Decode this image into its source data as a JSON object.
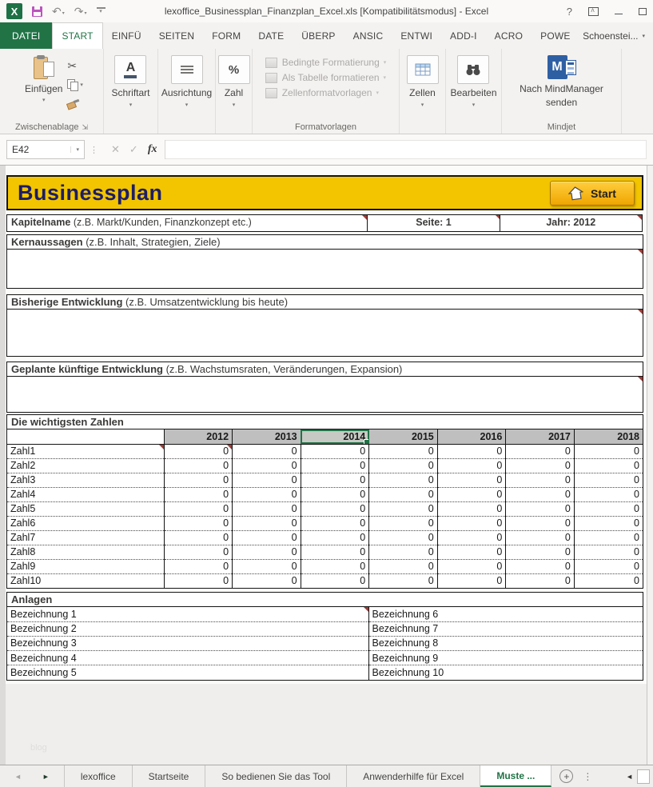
{
  "title_bar": {
    "title": "lexoffice_Businessplan_Finanzplan_Excel.xls  [Kompatibilitätsmodus] - Excel"
  },
  "icons": {
    "excel": "X",
    "undo": "↶",
    "redo": "↷",
    "dropdown": "▾",
    "scissors": "✂",
    "dialog_launcher": "⇲",
    "font": "A",
    "percent": "%",
    "mindmanager": "M",
    "help": "?",
    "cancel": "✕",
    "enter": "✓",
    "function": "fx",
    "more": "⋮",
    "sheet_nav_left": "◄",
    "sheet_nav_right": "►",
    "tab_scroll_left": "◄",
    "add_sheet": "+"
  },
  "ribbon": {
    "tabs": [
      {
        "label": "DATEI",
        "file": true
      },
      {
        "label": "START",
        "active": true
      },
      {
        "label": "EINFÜ"
      },
      {
        "label": "SEITEN"
      },
      {
        "label": "FORM"
      },
      {
        "label": "DATE"
      },
      {
        "label": "ÜBERP"
      },
      {
        "label": "ANSIC"
      },
      {
        "label": "ENTWI"
      },
      {
        "label": "ADD-I"
      },
      {
        "label": "ACRO"
      },
      {
        "label": "POWE"
      }
    ],
    "account": "Schoenstei...",
    "clipboard": {
      "paste_label": "Einfügen",
      "group_label": "Zwischenablage"
    },
    "font_label": "Schriftart",
    "alignment_label": "Ausrichtung",
    "number_label": "Zahl",
    "styles": {
      "items": [
        "Bedingte Formatierung",
        "Als Tabelle formatieren",
        "Zellenformatvorlagen"
      ],
      "group_label": "Formatvorlagen"
    },
    "cells_label": "Zellen",
    "editing_label": "Bearbeiten",
    "mindjet": {
      "button_label": "Nach MindManager senden",
      "group_label": "Mindjet"
    }
  },
  "formula_bar": {
    "name_box": "E42",
    "formula": ""
  },
  "sheet": {
    "banner": {
      "title": "Businessplan",
      "start_button": "Start"
    },
    "meta": {
      "kapitel_label": "Kapitelname",
      "kapitel_hint": "(z.B. Markt/Kunden, Finanzkonzept etc.)",
      "seite": "Seite: 1",
      "jahr": "Jahr: 2012"
    },
    "sections": [
      {
        "title": "Kernaussagen",
        "hint": "(z.B. Inhalt, Strategien, Ziele)"
      },
      {
        "title": "Bisherige Entwicklung",
        "hint": "(z.B. Umsatzentwicklung bis heute)"
      },
      {
        "title": "Geplante künftige Entwicklung",
        "hint": "(z.B. Wachstumsraten, Veränderungen, Expansion)"
      }
    ],
    "numbers_table": {
      "title": "Die wichtigsten Zahlen",
      "years": [
        "2012",
        "2013",
        "2014",
        "2015",
        "2016",
        "2017",
        "2018"
      ],
      "selected_year": "2014",
      "rows": [
        {
          "label": "Zahl1",
          "values": [
            "0",
            "0",
            "0",
            "0",
            "0",
            "0",
            "0"
          ],
          "comment_on_label": true,
          "comment_cols": [
            0
          ]
        },
        {
          "label": "Zahl2",
          "values": [
            "0",
            "0",
            "0",
            "0",
            "0",
            "0",
            "0"
          ]
        },
        {
          "label": "Zahl3",
          "values": [
            "0",
            "0",
            "0",
            "0",
            "0",
            "0",
            "0"
          ]
        },
        {
          "label": "Zahl4",
          "values": [
            "0",
            "0",
            "0",
            "0",
            "0",
            "0",
            "0"
          ]
        },
        {
          "label": "Zahl5",
          "values": [
            "0",
            "0",
            "0",
            "0",
            "0",
            "0",
            "0"
          ]
        },
        {
          "label": "Zahl6",
          "values": [
            "0",
            "0",
            "0",
            "0",
            "0",
            "0",
            "0"
          ]
        },
        {
          "label": "Zahl7",
          "values": [
            "0",
            "0",
            "0",
            "0",
            "0",
            "0",
            "0"
          ]
        },
        {
          "label": "Zahl8",
          "values": [
            "0",
            "0",
            "0",
            "0",
            "0",
            "0",
            "0"
          ]
        },
        {
          "label": "Zahl9",
          "values": [
            "0",
            "0",
            "0",
            "0",
            "0",
            "0",
            "0"
          ]
        },
        {
          "label": "Zahl10",
          "values": [
            "0",
            "0",
            "0",
            "0",
            "0",
            "0",
            "0"
          ]
        }
      ]
    },
    "anlagen": {
      "title": "Anlagen",
      "pairs": [
        [
          "Bezeichnung 1",
          "Bezeichnung 6"
        ],
        [
          "Bezeichnung 2",
          "Bezeichnung 7"
        ],
        [
          "Bezeichnung 3",
          "Bezeichnung 8"
        ],
        [
          "Bezeichnung 4",
          "Bezeichnung 9"
        ],
        [
          "Bezeichnung 5",
          "Bezeichnung 10"
        ]
      ]
    },
    "watermark": "blog"
  },
  "sheet_tabs": {
    "tabs": [
      {
        "label": "lexoffice"
      },
      {
        "label": "Startseite"
      },
      {
        "label": "So bedienen Sie das Tool"
      },
      {
        "label": "Anwenderhilfe für Excel"
      },
      {
        "label": "Muste",
        "suffix": "...",
        "active": true
      }
    ]
  }
}
